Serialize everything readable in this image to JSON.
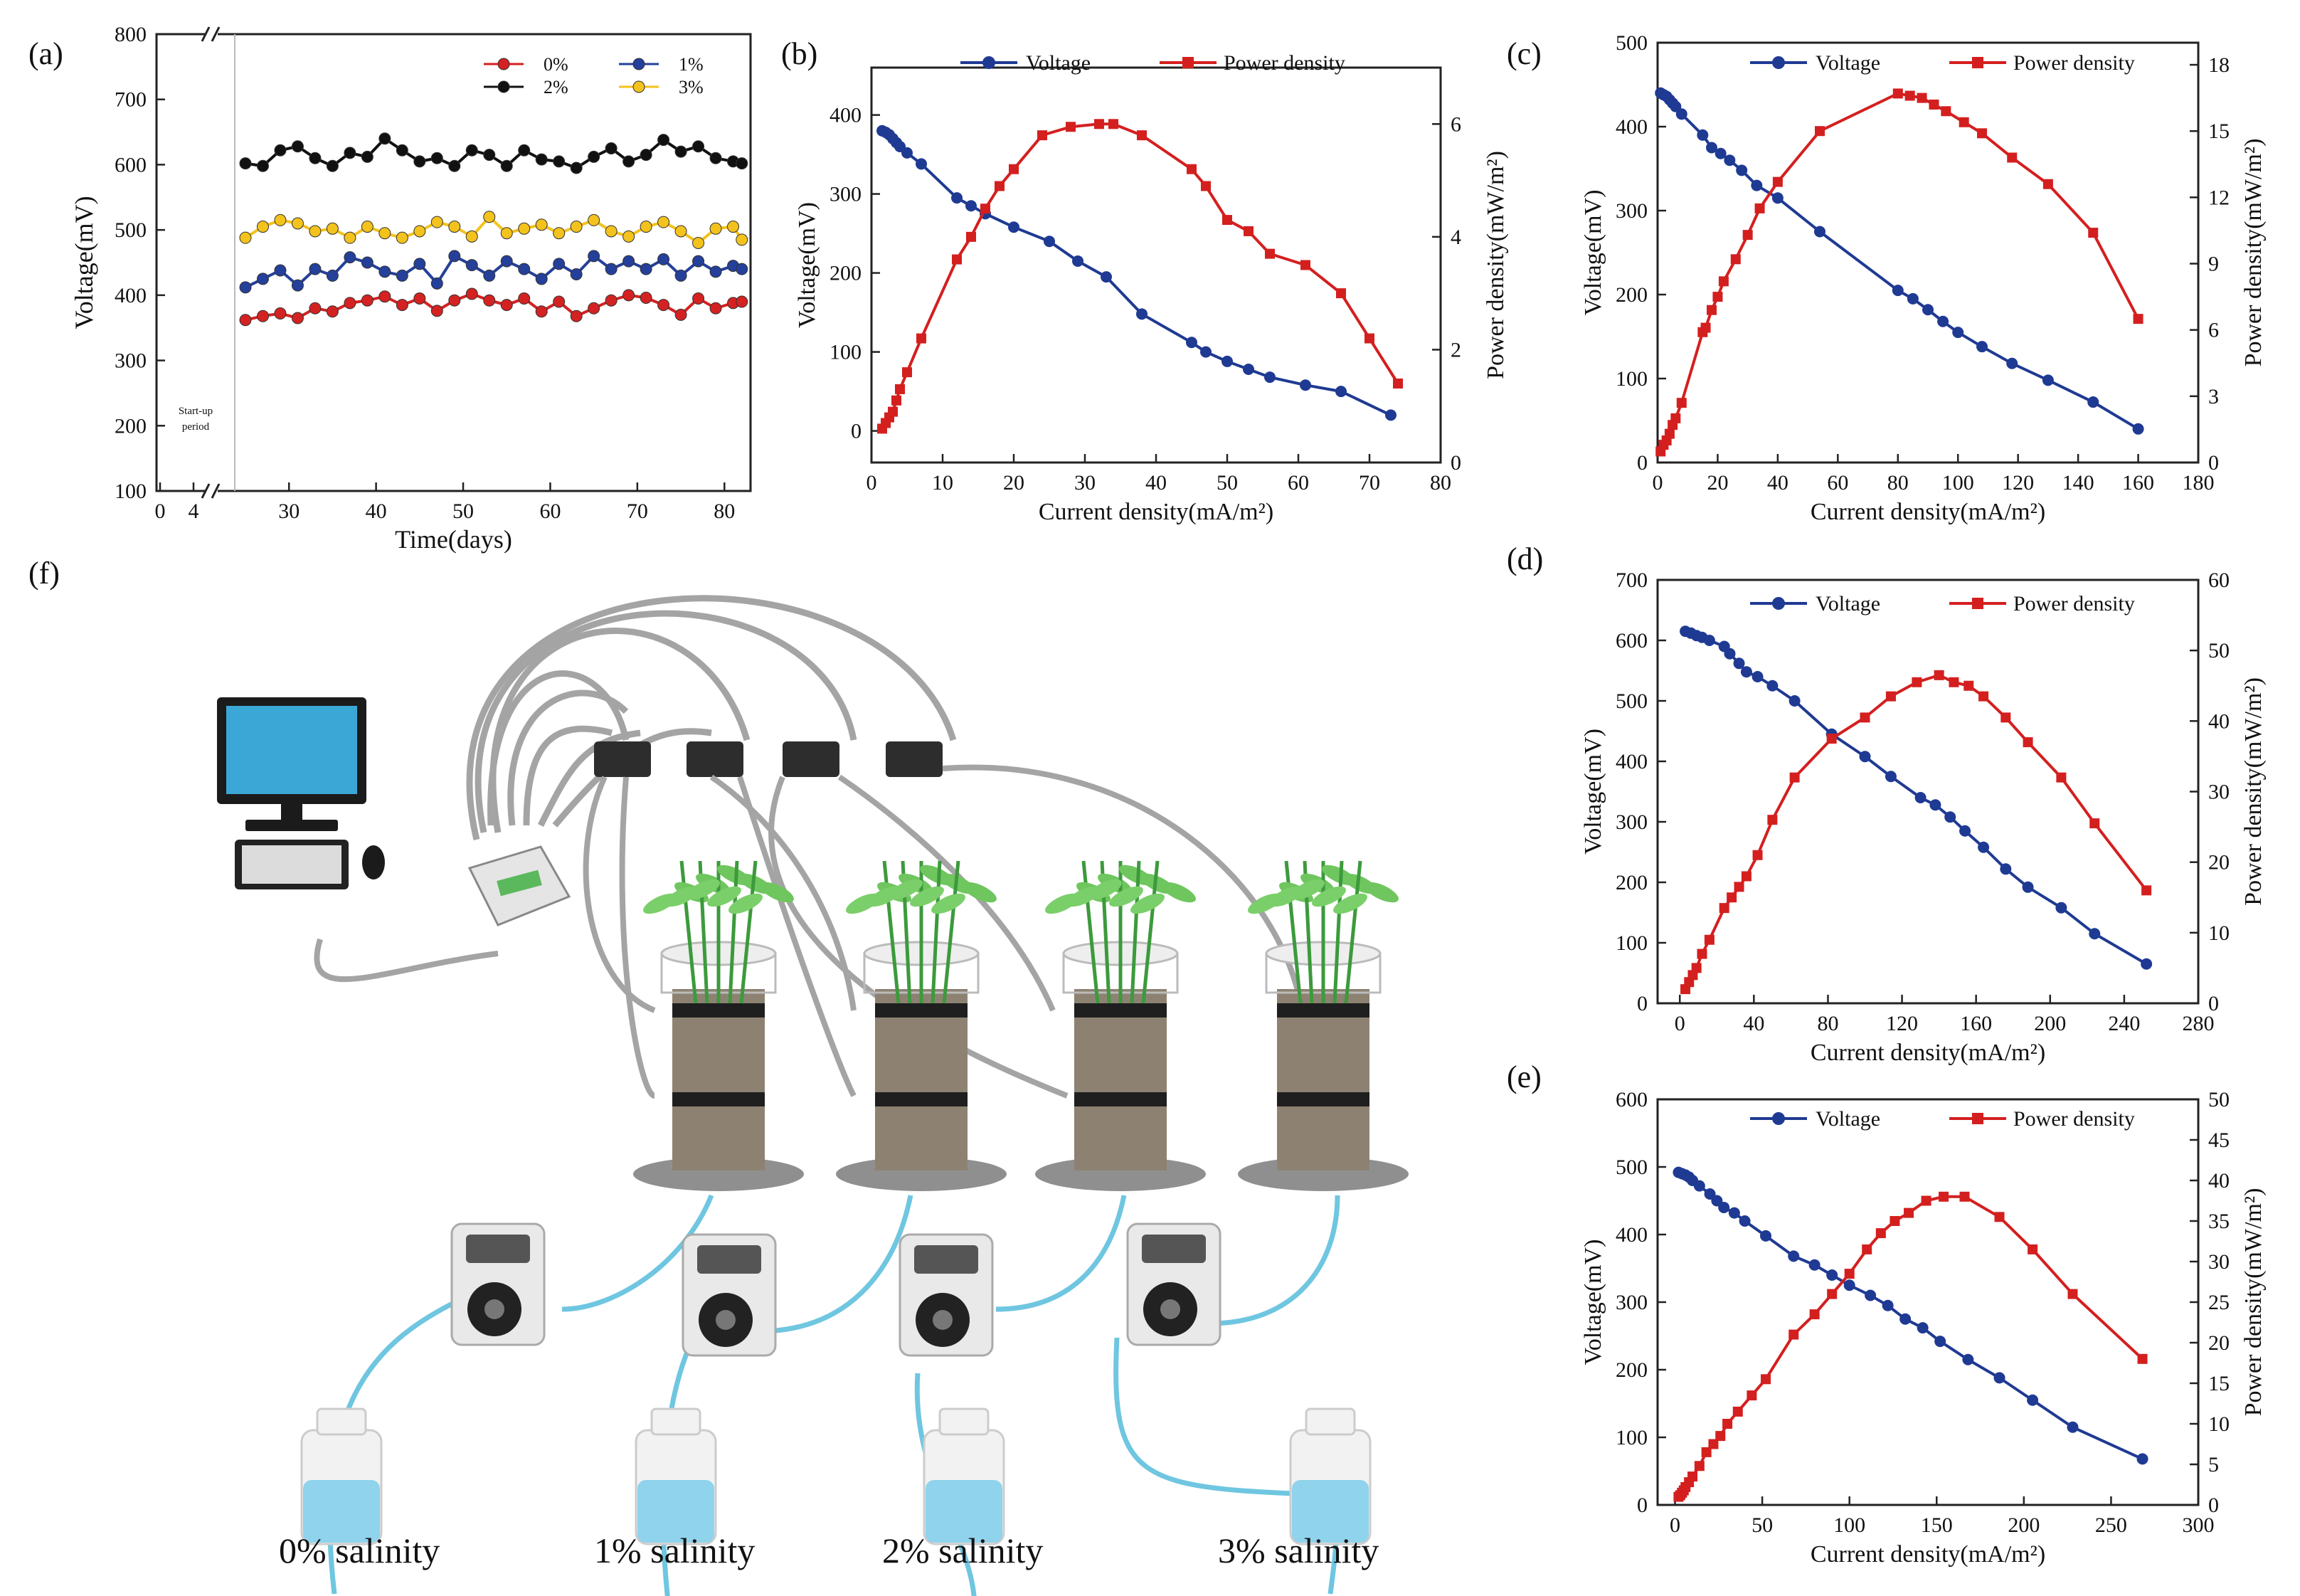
{
  "colors": {
    "voltage": "#1f3a93",
    "power": "#d41f1f",
    "s0": "#d42222",
    "s1": "#24409a",
    "s2": "#111111",
    "s3": "#f3c21d",
    "water": "#8fd3ec",
    "tube": "#9a9a9a"
  },
  "chart_data": [
    {
      "id": "a",
      "type": "line",
      "panel_label": "(a)",
      "xlabel": "Time(days)",
      "ylabel": "Voltage(mV)",
      "xlim": [
        0,
        83
      ],
      "ylim": [
        100,
        800
      ],
      "x_ticks": [
        "0",
        "4",
        "30",
        "40",
        "50",
        "60",
        "70",
        "80"
      ],
      "y_ticks": [
        "100",
        "200",
        "300",
        "400",
        "500",
        "600",
        "700",
        "800"
      ],
      "annotation": [
        "Start-up",
        "period"
      ],
      "series": [
        {
          "name": "0%",
          "x": [
            25,
            27,
            29,
            31,
            33,
            35,
            37,
            39,
            41,
            43,
            45,
            47,
            49,
            51,
            53,
            55,
            57,
            59,
            61,
            63,
            65,
            67,
            69,
            71,
            73,
            75,
            77,
            79,
            81,
            82
          ],
          "values": [
            362,
            368,
            372,
            365,
            380,
            375,
            388,
            392,
            398,
            385,
            395,
            376,
            392,
            402,
            392,
            385,
            395,
            375,
            390,
            368,
            380,
            392,
            400,
            396,
            385,
            370,
            395,
            380,
            388,
            390
          ]
        },
        {
          "name": "1%",
          "x": [
            25,
            27,
            29,
            31,
            33,
            35,
            37,
            39,
            41,
            43,
            45,
            47,
            49,
            51,
            53,
            55,
            57,
            59,
            61,
            63,
            65,
            67,
            69,
            71,
            73,
            75,
            77,
            79,
            81,
            82
          ],
          "values": [
            412,
            425,
            438,
            415,
            440,
            430,
            458,
            450,
            436,
            430,
            448,
            418,
            460,
            446,
            430,
            452,
            440,
            425,
            448,
            432,
            460,
            440,
            452,
            440,
            455,
            430,
            452,
            436,
            445,
            440
          ]
        },
        {
          "name": "2%",
          "x": [
            25,
            27,
            29,
            31,
            33,
            35,
            37,
            39,
            41,
            43,
            45,
            47,
            49,
            51,
            53,
            55,
            57,
            59,
            61,
            63,
            65,
            67,
            69,
            71,
            73,
            75,
            77,
            79,
            81,
            82
          ],
          "values": [
            602,
            598,
            622,
            628,
            610,
            598,
            618,
            612,
            640,
            622,
            605,
            610,
            598,
            622,
            615,
            598,
            622,
            608,
            605,
            595,
            612,
            625,
            605,
            615,
            638,
            620,
            628,
            610,
            605,
            602
          ]
        },
        {
          "name": "3%",
          "x": [
            25,
            27,
            29,
            31,
            33,
            35,
            37,
            39,
            41,
            43,
            45,
            47,
            49,
            51,
            53,
            55,
            57,
            59,
            61,
            63,
            65,
            67,
            69,
            71,
            73,
            75,
            77,
            79,
            81,
            82
          ],
          "values": [
            488,
            505,
            515,
            510,
            498,
            502,
            488,
            505,
            495,
            488,
            498,
            512,
            505,
            490,
            520,
            495,
            502,
            508,
            495,
            505,
            515,
            498,
            490,
            505,
            512,
            498,
            480,
            502,
            505,
            485
          ]
        }
      ]
    },
    {
      "id": "b",
      "type": "line",
      "panel_label": "(b)",
      "xlabel": "Current density(mA/m²)",
      "ylabel": "Voltage(mV)",
      "y2label": "Power density(mW/m²)",
      "xlim": [
        0,
        80
      ],
      "ylim": [
        -40,
        460
      ],
      "y2lim": [
        0,
        7
      ],
      "x_ticks": [
        0,
        10,
        20,
        30,
        40,
        50,
        60,
        70,
        80
      ],
      "y_ticks": [
        0,
        100,
        200,
        300,
        400
      ],
      "y2_ticks": [
        0,
        2,
        4,
        6
      ],
      "series": [
        {
          "name": "Voltage",
          "axis": "left",
          "x": [
            1.5,
            2,
            2.5,
            3,
            3.5,
            4,
            5,
            7,
            12,
            14,
            16,
            20,
            25,
            29,
            33,
            38,
            45,
            47,
            50,
            53,
            56,
            61,
            66,
            73
          ],
          "values": [
            380,
            378,
            375,
            370,
            365,
            360,
            352,
            338,
            295,
            285,
            275,
            258,
            240,
            215,
            195,
            148,
            112,
            100,
            88,
            78,
            68,
            58,
            50,
            20
          ]
        },
        {
          "name": "Power density",
          "axis": "right",
          "x": [
            1.5,
            2,
            2.5,
            3,
            3.5,
            4,
            5,
            7,
            12,
            14,
            16,
            18,
            20,
            24,
            28,
            32,
            34,
            38,
            45,
            47,
            50,
            53,
            56,
            61,
            66,
            70,
            74
          ],
          "values": [
            0.6,
            0.7,
            0.8,
            0.9,
            1.1,
            1.3,
            1.6,
            2.2,
            3.6,
            4.0,
            4.5,
            4.9,
            5.2,
            5.8,
            5.95,
            6.0,
            6.0,
            5.8,
            5.2,
            4.9,
            4.3,
            4.1,
            3.7,
            3.5,
            3.0,
            2.2,
            1.4
          ]
        }
      ]
    },
    {
      "id": "c",
      "type": "line",
      "panel_label": "(c)",
      "xlabel": "Current density(mA/m²)",
      "ylabel": "Voltage(mV)",
      "y2label": "Power density(mW/m²)",
      "xlim": [
        0,
        180
      ],
      "ylim": [
        0,
        500
      ],
      "y2lim": [
        0,
        19
      ],
      "x_ticks": [
        0,
        20,
        40,
        60,
        80,
        100,
        120,
        140,
        160,
        180
      ],
      "y_ticks": [
        0,
        100,
        200,
        300,
        400,
        500
      ],
      "y2_ticks": [
        0,
        3,
        6,
        9,
        12,
        15,
        18
      ],
      "series": [
        {
          "name": "Voltage",
          "axis": "left",
          "x": [
            1,
            2,
            3,
            4,
            5,
            6,
            8,
            15,
            18,
            21,
            24,
            28,
            33,
            40,
            54,
            80,
            85,
            90,
            95,
            100,
            108,
            118,
            130,
            145,
            160
          ],
          "values": [
            440,
            438,
            436,
            432,
            428,
            424,
            415,
            390,
            375,
            368,
            360,
            348,
            330,
            315,
            275,
            205,
            195,
            182,
            168,
            155,
            138,
            118,
            98,
            72,
            40
          ]
        },
        {
          "name": "Power density",
          "axis": "right",
          "x": [
            1,
            2,
            3,
            4,
            5,
            6,
            8,
            15,
            16,
            18,
            20,
            22,
            26,
            30,
            34,
            40,
            54,
            80,
            84,
            88,
            92,
            96,
            102,
            108,
            118,
            130,
            145,
            160
          ],
          "values": [
            0.5,
            0.8,
            1.0,
            1.3,
            1.7,
            2.0,
            2.7,
            5.9,
            6.1,
            6.9,
            7.5,
            8.2,
            9.2,
            10.3,
            11.5,
            12.7,
            15.0,
            16.7,
            16.6,
            16.5,
            16.2,
            15.9,
            15.4,
            14.9,
            13.8,
            12.6,
            10.4,
            6.5
          ]
        }
      ]
    },
    {
      "id": "d",
      "type": "line",
      "panel_label": "(d)",
      "xlabel": "Current density(mA/m²)",
      "ylabel": "Voltage(mV)",
      "y2label": "Power density(mW/m²)",
      "xlim": [
        -12,
        280
      ],
      "ylim": [
        0,
        700
      ],
      "y2lim": [
        0,
        60
      ],
      "x_ticks": [
        0,
        40,
        80,
        120,
        160,
        200,
        240,
        280
      ],
      "y_ticks": [
        0,
        100,
        200,
        300,
        400,
        500,
        600,
        700
      ],
      "y2_ticks": [
        0,
        10,
        20,
        30,
        40,
        50,
        60
      ],
      "series": [
        {
          "name": "Voltage",
          "axis": "left",
          "x": [
            3,
            6,
            9,
            12,
            16,
            24,
            27,
            32,
            36,
            42,
            50,
            62,
            82,
            100,
            114,
            130,
            138,
            146,
            154,
            164,
            176,
            188,
            206,
            224,
            252
          ],
          "values": [
            615,
            612,
            608,
            605,
            600,
            590,
            578,
            562,
            548,
            540,
            525,
            500,
            445,
            408,
            375,
            340,
            328,
            308,
            285,
            258,
            222,
            192,
            158,
            115,
            65
          ]
        },
        {
          "name": "Power density",
          "axis": "right",
          "x": [
            3,
            5,
            7,
            9,
            12,
            16,
            24,
            28,
            32,
            36,
            42,
            50,
            62,
            82,
            100,
            114,
            128,
            140,
            148,
            156,
            164,
            176,
            188,
            206,
            224,
            252
          ],
          "values": [
            2.0,
            3.0,
            4.0,
            5.0,
            7.0,
            9.0,
            13.5,
            15.0,
            16.5,
            18.0,
            21.0,
            26.0,
            32.0,
            37.5,
            40.5,
            43.5,
            45.5,
            46.5,
            45.5,
            45.0,
            43.5,
            40.5,
            37.0,
            32.0,
            25.5,
            16.0
          ]
        }
      ]
    },
    {
      "id": "e",
      "type": "line",
      "panel_label": "(e)",
      "xlabel": "Current density(mA/m²)",
      "ylabel": "Voltage(mV)",
      "y2label": "Power density(mW/m²)",
      "xlim": [
        -10,
        300
      ],
      "ylim": [
        0,
        600
      ],
      "y2lim": [
        0,
        50
      ],
      "x_ticks": [
        0,
        50,
        100,
        150,
        200,
        250,
        300
      ],
      "y_ticks": [
        0,
        100,
        200,
        300,
        400,
        500,
        600
      ],
      "y2_ticks": [
        0,
        5,
        10,
        15,
        20,
        25,
        30,
        35,
        40,
        45,
        50
      ],
      "series": [
        {
          "name": "Voltage",
          "axis": "left",
          "x": [
            2,
            4,
            6,
            8,
            10,
            14,
            20,
            24,
            28,
            34,
            40,
            52,
            68,
            80,
            90,
            100,
            112,
            122,
            132,
            142,
            152,
            168,
            186,
            205,
            228,
            268
          ],
          "values": [
            492,
            490,
            488,
            485,
            480,
            472,
            460,
            450,
            440,
            432,
            420,
            398,
            368,
            355,
            340,
            325,
            310,
            295,
            275,
            262,
            242,
            215,
            188,
            155,
            115,
            68
          ]
        },
        {
          "name": "Power density",
          "axis": "right",
          "x": [
            2,
            3,
            4,
            5,
            6,
            8,
            10,
            14,
            18,
            22,
            26,
            30,
            36,
            44,
            52,
            68,
            80,
            90,
            100,
            110,
            118,
            126,
            134,
            144,
            154,
            166,
            186,
            205,
            228,
            268
          ],
          "values": [
            1.0,
            1.2,
            1.5,
            1.8,
            2.2,
            2.8,
            3.5,
            4.8,
            6.5,
            7.5,
            8.5,
            10.0,
            11.5,
            13.5,
            15.5,
            21.0,
            23.5,
            26.0,
            28.5,
            31.5,
            33.5,
            35.0,
            36.0,
            37.5,
            38.0,
            38.0,
            35.5,
            31.5,
            26.0,
            18.0
          ]
        }
      ]
    }
  ],
  "diagram": {
    "panel_label": "(f)",
    "salinity_labels": [
      "0% salinity",
      "1% salinity",
      "2% salinity",
      "3% salinity"
    ]
  }
}
